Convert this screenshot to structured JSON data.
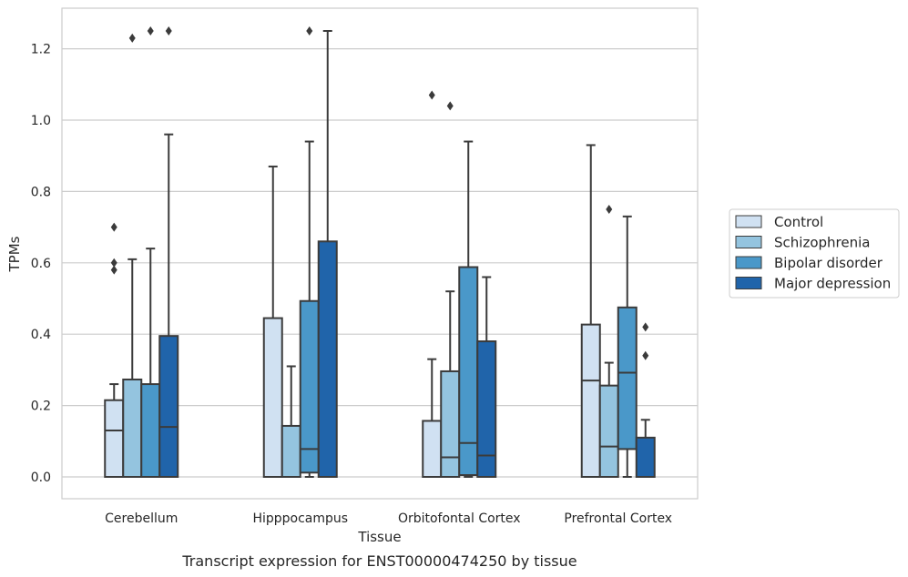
{
  "chart_data": {
    "type": "box",
    "xlabel": "Tissue",
    "ylabel": "TPMs",
    "caption": "Transcript expression for ENST00000474250 by tissue",
    "ylim": [
      -0.06,
      1.32
    ],
    "yticks": [
      "0.0",
      "0.2",
      "0.4",
      "0.6",
      "0.8",
      "1.0",
      "1.2"
    ],
    "grid": true,
    "legend_position": "right",
    "categories": [
      "Cerebellum",
      "Hipppocampus",
      "Orbitofontal Cortex",
      "Prefrontal Cortex"
    ],
    "series": [
      {
        "name": "Control",
        "color": "#d0e1f2",
        "boxes": [
          {
            "q1": 0.0,
            "median": 0.13,
            "q3": 0.215,
            "whisker_low": 0.0,
            "whisker_high": 0.26,
            "outliers": [
              0.58,
              0.6,
              0.7
            ]
          },
          {
            "q1": 0.0,
            "median": 0.0,
            "q3": 0.445,
            "whisker_low": 0.0,
            "whisker_high": 0.87,
            "outliers": []
          },
          {
            "q1": 0.0,
            "median": 0.0,
            "q3": 0.157,
            "whisker_low": 0.0,
            "whisker_high": 0.33,
            "outliers": [
              1.07
            ]
          },
          {
            "q1": 0.0,
            "median": 0.27,
            "q3": 0.427,
            "whisker_low": 0.0,
            "whisker_high": 0.93,
            "outliers": []
          }
        ]
      },
      {
        "name": "Schizophrenia",
        "color": "#94c4df",
        "boxes": [
          {
            "q1": 0.0,
            "median": 0.0,
            "q3": 0.273,
            "whisker_low": 0.0,
            "whisker_high": 0.61,
            "outliers": [
              1.23
            ]
          },
          {
            "q1": 0.0,
            "median": 0.0,
            "q3": 0.143,
            "whisker_low": 0.0,
            "whisker_high": 0.31,
            "outliers": []
          },
          {
            "q1": 0.0,
            "median": 0.055,
            "q3": 0.296,
            "whisker_low": 0.0,
            "whisker_high": 0.52,
            "outliers": [
              1.04
            ]
          },
          {
            "q1": 0.0,
            "median": 0.085,
            "q3": 0.256,
            "whisker_low": 0.0,
            "whisker_high": 0.32,
            "outliers": [
              0.75
            ]
          }
        ]
      },
      {
        "name": "Bipolar disorder",
        "color": "#4a98c9",
        "boxes": [
          {
            "q1": 0.0,
            "median": 0.0,
            "q3": 0.26,
            "whisker_low": 0.0,
            "whisker_high": 0.64,
            "outliers": [
              1.25
            ]
          },
          {
            "q1": 0.012,
            "median": 0.078,
            "q3": 0.493,
            "whisker_low": 0.0,
            "whisker_high": 0.94,
            "outliers": [
              1.25
            ]
          },
          {
            "q1": 0.005,
            "median": 0.095,
            "q3": 0.588,
            "whisker_low": 0.0,
            "whisker_high": 0.94,
            "outliers": []
          },
          {
            "q1": 0.078,
            "median": 0.292,
            "q3": 0.475,
            "whisker_low": 0.0,
            "whisker_high": 0.73,
            "outliers": []
          }
        ]
      },
      {
        "name": "Major depression",
        "color": "#2064aa",
        "boxes": [
          {
            "q1": 0.0,
            "median": 0.14,
            "q3": 0.395,
            "whisker_low": 0.0,
            "whisker_high": 0.96,
            "outliers": [
              1.25
            ]
          },
          {
            "q1": 0.0,
            "median": 0.0,
            "q3": 0.66,
            "whisker_low": 0.0,
            "whisker_high": 1.25,
            "outliers": []
          },
          {
            "q1": 0.0,
            "median": 0.06,
            "q3": 0.38,
            "whisker_low": 0.0,
            "whisker_high": 0.56,
            "outliers": []
          },
          {
            "q1": 0.0,
            "median": 0.0,
            "q3": 0.11,
            "whisker_low": 0.0,
            "whisker_high": 0.16,
            "outliers": [
              0.34,
              0.42
            ]
          }
        ]
      }
    ]
  }
}
